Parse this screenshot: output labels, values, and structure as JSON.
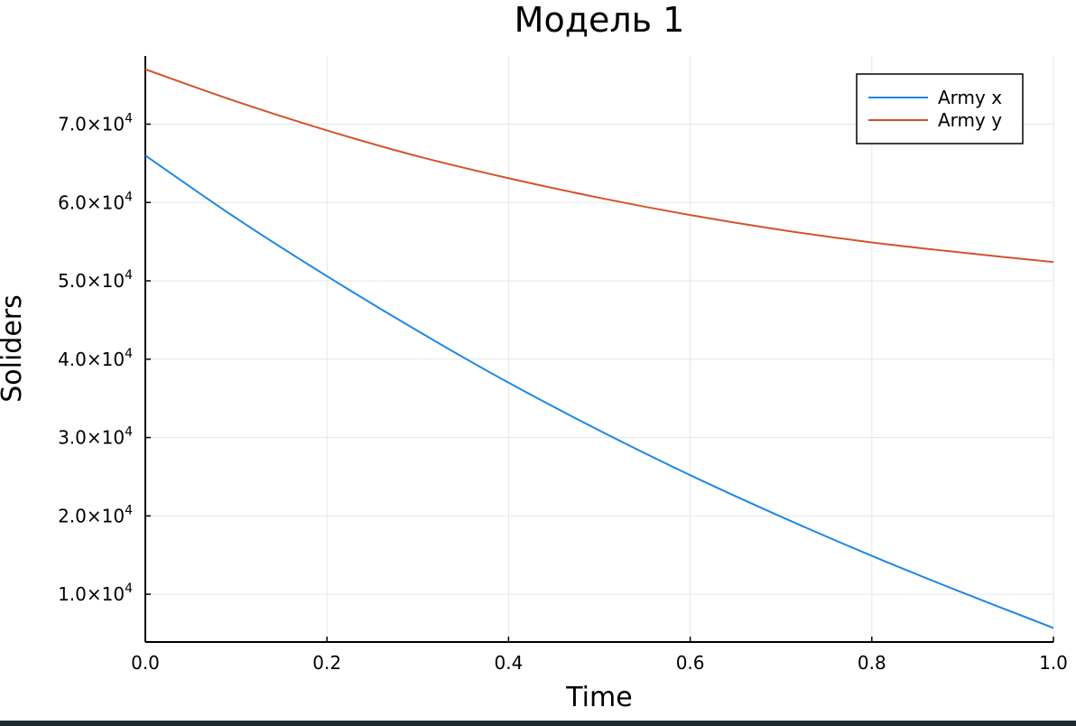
{
  "chart_data": {
    "type": "line",
    "title": "Модель 1",
    "xlabel": "Time",
    "ylabel": "Soliders",
    "xlim": [
      0,
      1
    ],
    "ylim": [
      3900,
      78700
    ],
    "x_ticks": [
      {
        "value": 0.0,
        "label": "0.0"
      },
      {
        "value": 0.2,
        "label": "0.2"
      },
      {
        "value": 0.4,
        "label": "0.4"
      },
      {
        "value": 0.6,
        "label": "0.6"
      },
      {
        "value": 0.8,
        "label": "0.8"
      },
      {
        "value": 1.0,
        "label": "1.0"
      }
    ],
    "y_ticks": [
      {
        "value": 10000,
        "mantissa": "1.0×10",
        "exp": "4"
      },
      {
        "value": 20000,
        "mantissa": "2.0×10",
        "exp": "4"
      },
      {
        "value": 30000,
        "mantissa": "3.0×10",
        "exp": "4"
      },
      {
        "value": 40000,
        "mantissa": "4.0×10",
        "exp": "4"
      },
      {
        "value": 50000,
        "mantissa": "5.0×10",
        "exp": "4"
      },
      {
        "value": 60000,
        "mantissa": "6.0×10",
        "exp": "4"
      },
      {
        "value": 70000,
        "mantissa": "7.0×10",
        "exp": "4"
      }
    ],
    "grid": true,
    "legend_position": "top-right",
    "series": [
      {
        "name": "Army x",
        "color": "#1e88e5",
        "x": [
          0.0,
          0.1,
          0.2,
          0.3,
          0.4,
          0.5,
          0.6,
          0.7,
          0.8,
          0.9,
          1.0
        ],
        "y": [
          66000,
          58000,
          50600,
          43600,
          37000,
          30900,
          25200,
          19900,
          14900,
          10200,
          5700
        ]
      },
      {
        "name": "Army y",
        "color": "#d4532c",
        "x": [
          0.0,
          0.1,
          0.2,
          0.3,
          0.4,
          0.5,
          0.6,
          0.7,
          0.8,
          0.9,
          1.0
        ],
        "y": [
          77000,
          72900,
          69200,
          65900,
          63100,
          60600,
          58400,
          56500,
          54900,
          53600,
          52400
        ]
      }
    ]
  }
}
